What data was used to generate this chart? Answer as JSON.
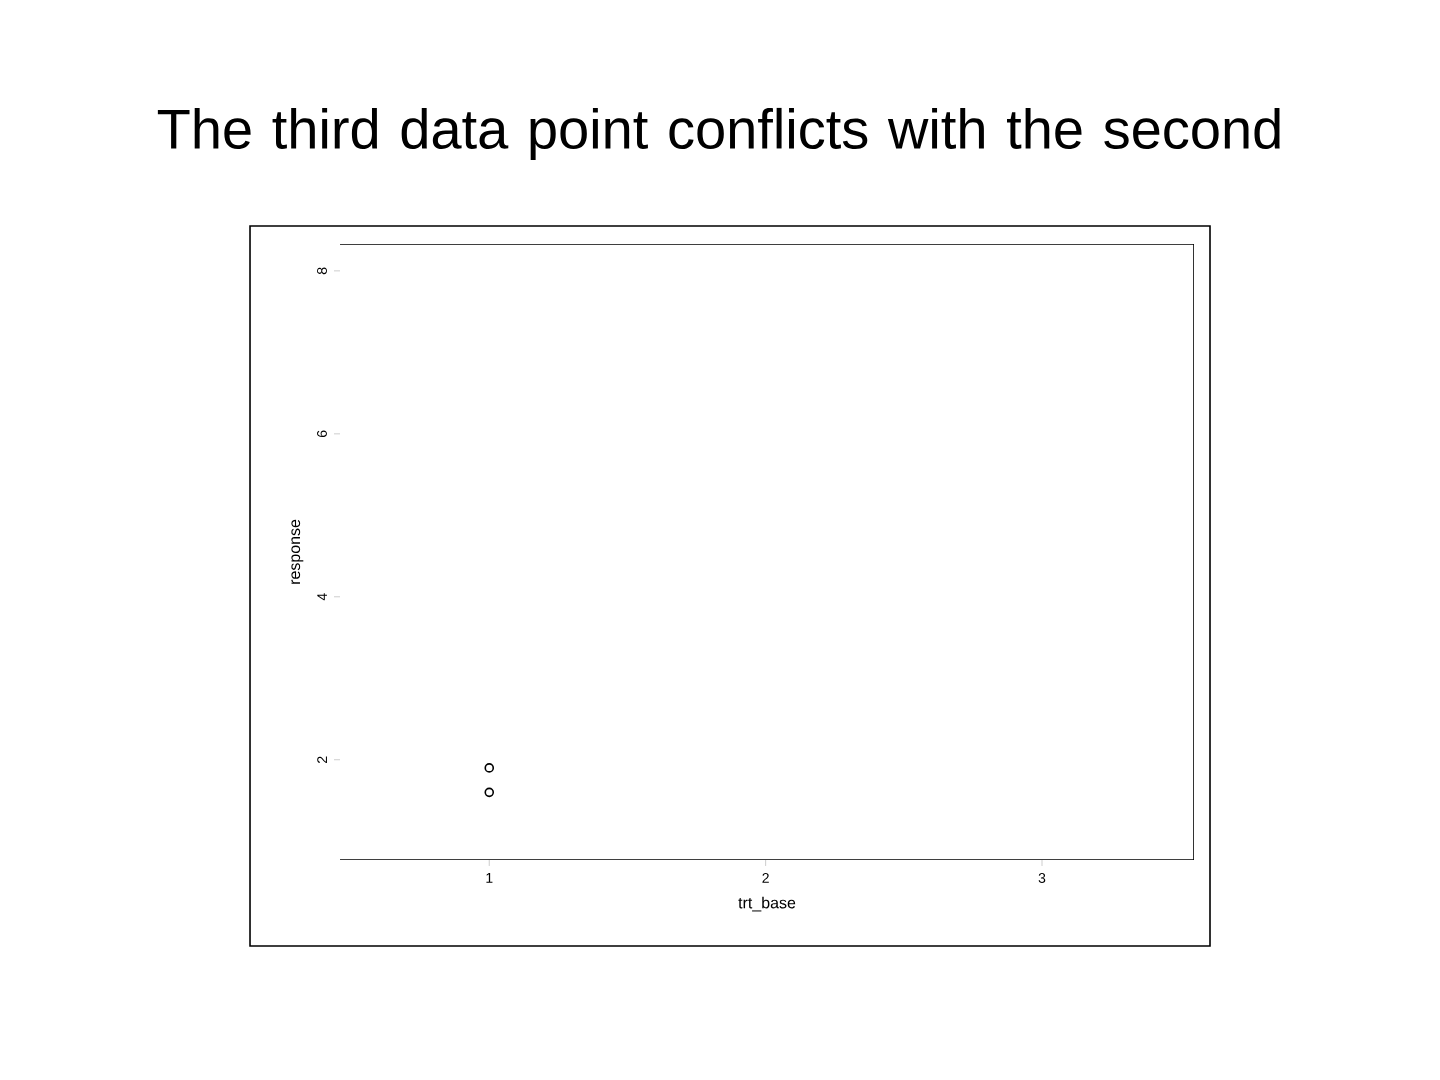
{
  "chart_data": {
    "type": "scatter",
    "title": "The third data point conflicts with the second",
    "xlabel": "trt_base",
    "ylabel": "response",
    "x": [
      1,
      1
    ],
    "values": [
      1.9,
      1.6
    ],
    "color": "#000000",
    "marker": "circle",
    "xlim": [
      0.46,
      3.55
    ],
    "ylim": [
      0.77,
      8.33
    ],
    "xticks": [
      1,
      2,
      3
    ],
    "yticks": [
      2,
      4,
      6,
      8
    ],
    "grid": false
  }
}
